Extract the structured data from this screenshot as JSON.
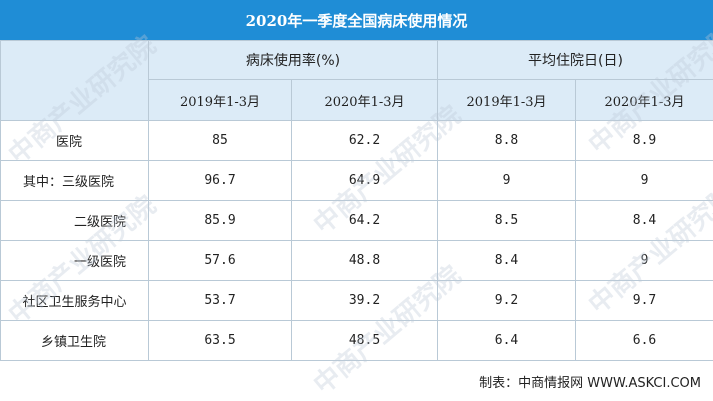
{
  "title": "2020年一季度全国病床使用情况",
  "headers": {
    "group1": "病床使用率(%)",
    "group2": "平均住院日(日)",
    "sub": [
      "2019年1-3月",
      "2020年1-3月",
      "2019年1-3月",
      "2020年1-3月"
    ]
  },
  "rows": [
    {
      "label": "医院",
      "v": [
        "85",
        "62.2",
        "8.8",
        "8.9"
      ]
    },
    {
      "label": "其中：三级医院",
      "v": [
        "96.7",
        "64.9",
        "9",
        "9"
      ]
    },
    {
      "label": "二级医院",
      "v": [
        "85.9",
        "64.2",
        "8.5",
        "8.4"
      ]
    },
    {
      "label": "一级医院",
      "v": [
        "57.6",
        "48.8",
        "8.4",
        "9"
      ]
    },
    {
      "label": "社区卫生服务中心",
      "v": [
        "53.7",
        "39.2",
        "9.2",
        "9.7"
      ]
    },
    {
      "label": "乡镇卫生院",
      "v": [
        "63.5",
        "48.5",
        "6.4",
        "6.6"
      ]
    }
  ],
  "source": "制表：中商情报网 WWW.ASKCI.COM",
  "watermark": "中商产业研究院"
}
